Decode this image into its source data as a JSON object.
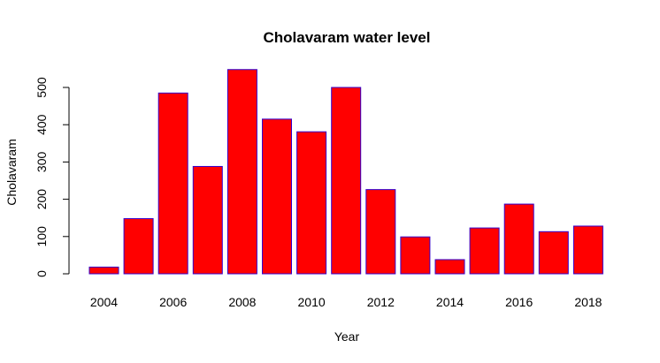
{
  "chart_data": {
    "type": "bar",
    "title": "Cholavaram water level",
    "xlabel": "Year",
    "ylabel": "Cholavaram",
    "categories": [
      "2004",
      "2005",
      "2006",
      "2007",
      "2008",
      "2009",
      "2010",
      "2011",
      "2012",
      "2013",
      "2014",
      "2015",
      "2016",
      "2017",
      "2018"
    ],
    "x_tick_labels": [
      "2004",
      "2006",
      "2008",
      "2010",
      "2012",
      "2014",
      "2016",
      "2018"
    ],
    "values": [
      18,
      148,
      485,
      288,
      548,
      415,
      381,
      500,
      226,
      99,
      38,
      123,
      187,
      113,
      128
    ],
    "yticks": [
      0,
      100,
      200,
      300,
      400,
      500
    ],
    "ylim": [
      0,
      550
    ],
    "bar_fill": "#ff0000",
    "bar_border": "#3300cc",
    "grid": false,
    "legend": "none"
  }
}
